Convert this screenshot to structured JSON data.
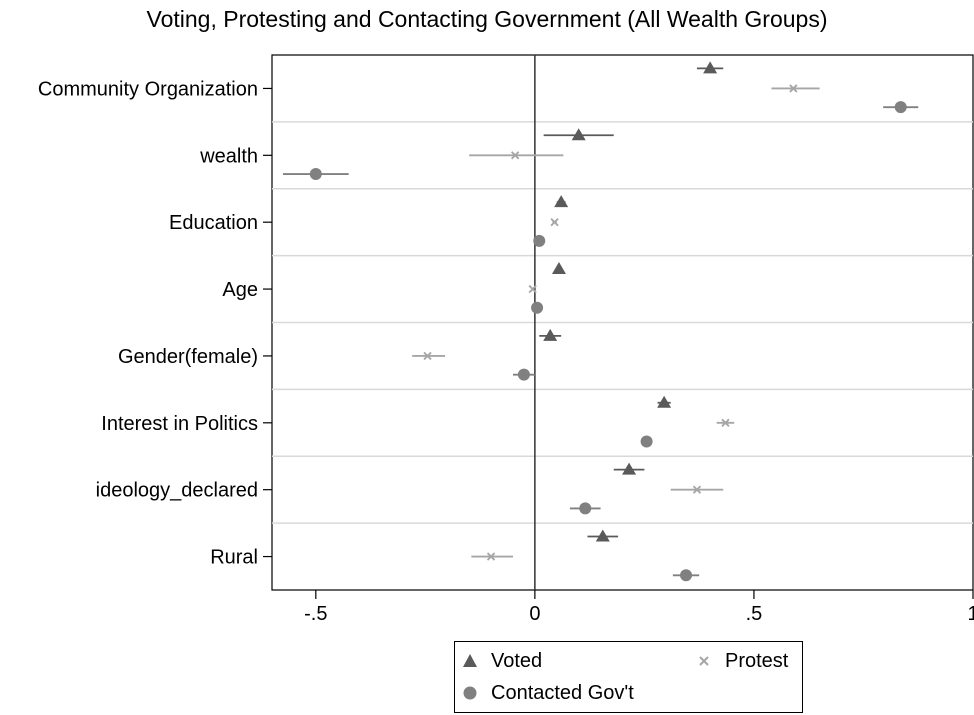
{
  "chart_data": {
    "type": "scatter",
    "title": "Voting, Protesting and Contacting Government (All Wealth Groups)",
    "categories": [
      "Community Organization",
      "wealth",
      "Education",
      "Age",
      "Gender(female)",
      "Interest in Politics",
      "ideology_declared",
      "Rural"
    ],
    "xlim": [
      -0.6,
      1.0
    ],
    "xticks": [
      -0.5,
      0,
      0.5,
      1
    ],
    "xtick_labels": [
      "-.5",
      "0",
      ".5",
      "1"
    ],
    "reference_line_x": 0,
    "grid": "horizontal separators between categories",
    "legend_position": "bottom",
    "series": [
      {
        "name": "Voted",
        "marker": "triangle",
        "color": "#5a5a5a",
        "points": [
          {
            "category": "Community Organization",
            "estimate": 0.4,
            "ci": [
              0.37,
              0.43
            ]
          },
          {
            "category": "wealth",
            "estimate": 0.1,
            "ci": [
              0.02,
              0.18
            ]
          },
          {
            "category": "Education",
            "estimate": 0.06,
            "ci": [
              0.05,
              0.07
            ]
          },
          {
            "category": "Age",
            "estimate": 0.055,
            "ci": [
              0.05,
              0.06
            ]
          },
          {
            "category": "Gender(female)",
            "estimate": 0.035,
            "ci": [
              0.01,
              0.06
            ]
          },
          {
            "category": "Interest in Politics",
            "estimate": 0.295,
            "ci": [
              0.28,
              0.31
            ]
          },
          {
            "category": "ideology_declared",
            "estimate": 0.215,
            "ci": [
              0.18,
              0.25
            ]
          },
          {
            "category": "Rural",
            "estimate": 0.155,
            "ci": [
              0.12,
              0.19
            ]
          }
        ]
      },
      {
        "name": "Protest",
        "marker": "x",
        "color": "#a6a6a6",
        "points": [
          {
            "category": "Community Organization",
            "estimate": 0.59,
            "ci": [
              0.54,
              0.65
            ]
          },
          {
            "category": "wealth",
            "estimate": -0.045,
            "ci": [
              -0.15,
              0.065
            ]
          },
          {
            "category": "Education",
            "estimate": 0.045,
            "ci": [
              0.04,
              0.05
            ]
          },
          {
            "category": "Age",
            "estimate": -0.005,
            "ci": [
              -0.008,
              -0.002
            ]
          },
          {
            "category": "Gender(female)",
            "estimate": -0.245,
            "ci": [
              -0.28,
              -0.205
            ]
          },
          {
            "category": "Interest in Politics",
            "estimate": 0.435,
            "ci": [
              0.415,
              0.455
            ]
          },
          {
            "category": "ideology_declared",
            "estimate": 0.37,
            "ci": [
              0.31,
              0.43
            ]
          },
          {
            "category": "Rural",
            "estimate": -0.1,
            "ci": [
              -0.145,
              -0.05
            ]
          }
        ]
      },
      {
        "name": "Contacted Gov't",
        "marker": "circle",
        "color": "#808080",
        "points": [
          {
            "category": "Community Organization",
            "estimate": 0.835,
            "ci": [
              0.795,
              0.875
            ]
          },
          {
            "category": "wealth",
            "estimate": -0.5,
            "ci": [
              -0.575,
              -0.425
            ]
          },
          {
            "category": "Education",
            "estimate": 0.01,
            "ci": [
              0.005,
              0.015
            ]
          },
          {
            "category": "Age",
            "estimate": 0.005,
            "ci": [
              0.002,
              0.008
            ]
          },
          {
            "category": "Gender(female)",
            "estimate": -0.025,
            "ci": [
              -0.05,
              0.0
            ]
          },
          {
            "category": "Interest in Politics",
            "estimate": 0.255,
            "ci": [
              0.245,
              0.265
            ]
          },
          {
            "category": "ideology_declared",
            "estimate": 0.115,
            "ci": [
              0.08,
              0.15
            ]
          },
          {
            "category": "Rural",
            "estimate": 0.345,
            "ci": [
              0.315,
              0.375
            ]
          }
        ]
      }
    ]
  }
}
